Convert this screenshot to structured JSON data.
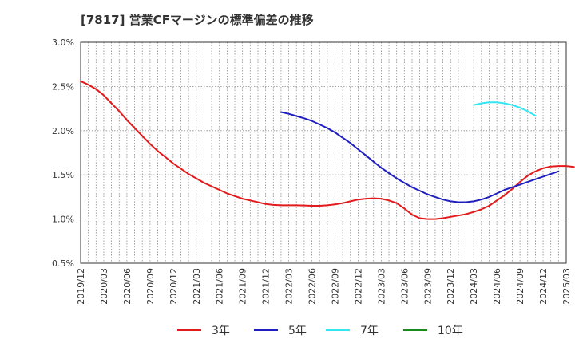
{
  "chart_data": {
    "type": "line",
    "title": "[7817]  営業CFマージンの標準偏差の推移",
    "xlabel": "",
    "ylabel": "",
    "ylim": [
      0.5,
      3.0
    ],
    "y_ticks": [
      {
        "value": 0.5,
        "label": "0.5%"
      },
      {
        "value": 1.0,
        "label": "1.0%"
      },
      {
        "value": 1.5,
        "label": "1.5%"
      },
      {
        "value": 2.0,
        "label": "2.0%"
      },
      {
        "value": 2.5,
        "label": "2.5%"
      },
      {
        "value": 3.0,
        "label": "3.0%"
      }
    ],
    "x_start": "2019/12",
    "x_end": "2025/03",
    "x_ticks": [
      "2019/12",
      "2020/03",
      "2020/06",
      "2020/09",
      "2020/12",
      "2021/03",
      "2021/06",
      "2021/09",
      "2021/12",
      "2022/03",
      "2022/06",
      "2022/09",
      "2022/12",
      "2023/03",
      "2023/06",
      "2023/09",
      "2023/12",
      "2024/03",
      "2024/06",
      "2024/09",
      "2024/12",
      "2025/03"
    ],
    "grid": true,
    "legend_position": "bottom",
    "series": [
      {
        "name": "3年",
        "color": "#e31a1c",
        "points": [
          [
            "2019/12",
            2.56
          ],
          [
            "2020/01",
            2.52
          ],
          [
            "2020/02",
            2.47
          ],
          [
            "2020/03",
            2.4
          ],
          [
            "2020/04",
            2.31
          ],
          [
            "2020/05",
            2.22
          ],
          [
            "2020/06",
            2.12
          ],
          [
            "2020/07",
            2.03
          ],
          [
            "2020/08",
            1.94
          ],
          [
            "2020/09",
            1.85
          ],
          [
            "2020/10",
            1.77
          ],
          [
            "2020/11",
            1.7
          ],
          [
            "2020/12",
            1.63
          ],
          [
            "2021/01",
            1.57
          ],
          [
            "2021/02",
            1.51
          ],
          [
            "2021/03",
            1.46
          ],
          [
            "2021/04",
            1.41
          ],
          [
            "2021/05",
            1.37
          ],
          [
            "2021/06",
            1.33
          ],
          [
            "2021/07",
            1.29
          ],
          [
            "2021/08",
            1.26
          ],
          [
            "2021/09",
            1.23
          ],
          [
            "2021/10",
            1.21
          ],
          [
            "2021/11",
            1.19
          ],
          [
            "2021/12",
            1.17
          ],
          [
            "2022/01",
            1.16
          ],
          [
            "2022/02",
            1.155
          ],
          [
            "2022/03",
            1.155
          ],
          [
            "2022/04",
            1.155
          ],
          [
            "2022/05",
            1.153
          ],
          [
            "2022/06",
            1.15
          ],
          [
            "2022/07",
            1.15
          ],
          [
            "2022/08",
            1.155
          ],
          [
            "2022/09",
            1.165
          ],
          [
            "2022/10",
            1.18
          ],
          [
            "2022/11",
            1.2
          ],
          [
            "2022/12",
            1.22
          ],
          [
            "2023/01",
            1.23
          ],
          [
            "2023/02",
            1.235
          ],
          [
            "2023/03",
            1.23
          ],
          [
            "2023/04",
            1.21
          ],
          [
            "2023/05",
            1.18
          ],
          [
            "2023/06",
            1.12
          ],
          [
            "2023/07",
            1.05
          ],
          [
            "2023/08",
            1.01
          ],
          [
            "2023/09",
            1.0
          ],
          [
            "2023/10",
            1.0
          ],
          [
            "2023/11",
            1.01
          ],
          [
            "2023/12",
            1.025
          ],
          [
            "2024/01",
            1.04
          ],
          [
            "2024/02",
            1.055
          ],
          [
            "2024/03",
            1.08
          ],
          [
            "2024/04",
            1.11
          ],
          [
            "2024/05",
            1.15
          ],
          [
            "2024/06",
            1.21
          ],
          [
            "2024/07",
            1.27
          ],
          [
            "2024/08",
            1.34
          ],
          [
            "2024/09",
            1.42
          ],
          [
            "2024/10",
            1.49
          ],
          [
            "2024/11",
            1.54
          ],
          [
            "2024/12",
            1.575
          ],
          [
            "2025/01",
            1.595
          ],
          [
            "2025/02",
            1.6
          ],
          [
            "2025/03",
            1.6
          ],
          [
            "2025/04",
            1.59
          ]
        ]
      },
      {
        "name": "5年",
        "color": "#1f1fbf",
        "points": [
          [
            "2022/02",
            2.21
          ],
          [
            "2022/03",
            2.19
          ],
          [
            "2022/04",
            2.165
          ],
          [
            "2022/05",
            2.14
          ],
          [
            "2022/06",
            2.11
          ],
          [
            "2022/07",
            2.07
          ],
          [
            "2022/08",
            2.03
          ],
          [
            "2022/09",
            1.98
          ],
          [
            "2022/10",
            1.92
          ],
          [
            "2022/11",
            1.86
          ],
          [
            "2022/12",
            1.79
          ],
          [
            "2023/01",
            1.72
          ],
          [
            "2023/02",
            1.65
          ],
          [
            "2023/03",
            1.58
          ],
          [
            "2023/04",
            1.52
          ],
          [
            "2023/05",
            1.46
          ],
          [
            "2023/06",
            1.41
          ],
          [
            "2023/07",
            1.36
          ],
          [
            "2023/08",
            1.32
          ],
          [
            "2023/09",
            1.28
          ],
          [
            "2023/10",
            1.25
          ],
          [
            "2023/11",
            1.22
          ],
          [
            "2023/12",
            1.2
          ],
          [
            "2024/01",
            1.19
          ],
          [
            "2024/02",
            1.19
          ],
          [
            "2024/03",
            1.2
          ],
          [
            "2024/04",
            1.22
          ],
          [
            "2024/05",
            1.25
          ],
          [
            "2024/06",
            1.29
          ],
          [
            "2024/07",
            1.33
          ],
          [
            "2024/08",
            1.36
          ],
          [
            "2024/09",
            1.39
          ],
          [
            "2024/10",
            1.42
          ],
          [
            "2024/11",
            1.45
          ],
          [
            "2024/12",
            1.48
          ],
          [
            "2025/01",
            1.51
          ],
          [
            "2025/02",
            1.54
          ]
        ]
      },
      {
        "name": "7年",
        "color": "#33e6f2",
        "points": [
          [
            "2024/03",
            2.29
          ],
          [
            "2024/04",
            2.31
          ],
          [
            "2024/05",
            2.32
          ],
          [
            "2024/06",
            2.32
          ],
          [
            "2024/07",
            2.31
          ],
          [
            "2024/08",
            2.29
          ],
          [
            "2024/09",
            2.26
          ],
          [
            "2024/10",
            2.22
          ],
          [
            "2024/11",
            2.17
          ]
        ]
      },
      {
        "name": "10年",
        "color": "#1a8a1a",
        "points": []
      }
    ]
  }
}
